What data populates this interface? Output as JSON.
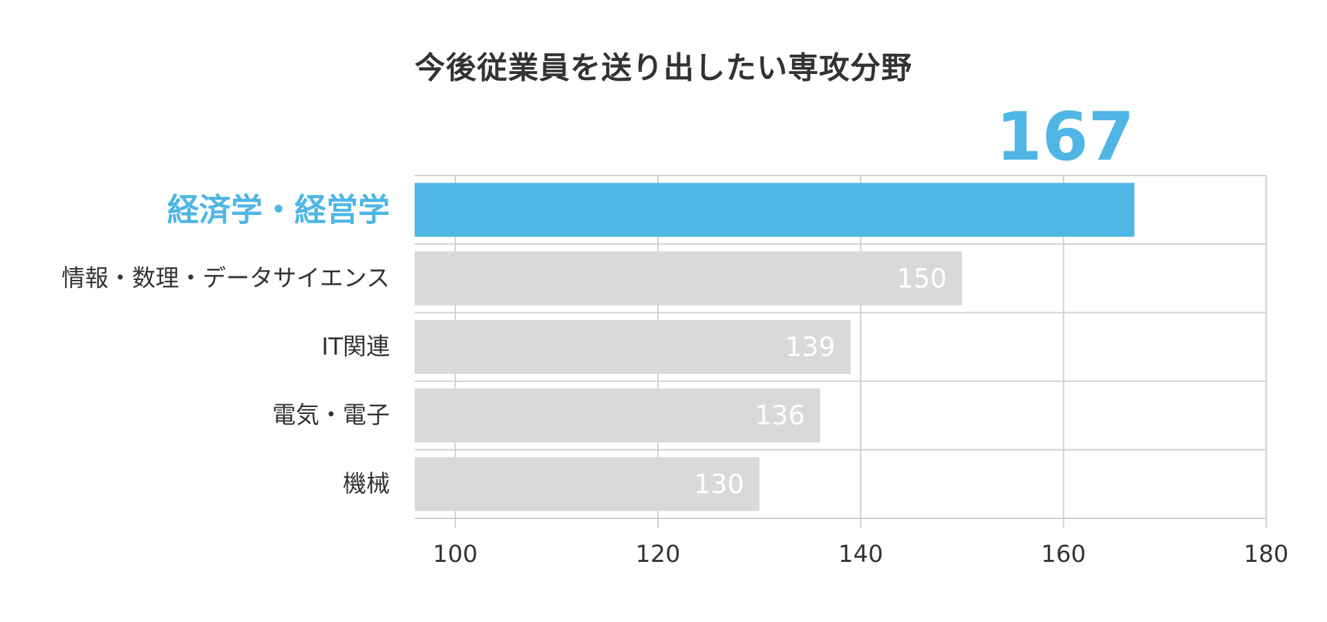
{
  "chart_data": {
    "type": "bar",
    "orientation": "horizontal",
    "title": "今後従業員を送り出したい専攻分野",
    "categories": [
      "経済学・経営学",
      "情報・数理・データサイエンス",
      "IT関連",
      "電気・電子",
      "機械"
    ],
    "values": [
      167,
      150,
      139,
      136,
      130
    ],
    "data_labels": [
      "167",
      "150",
      "139",
      "136",
      "130"
    ],
    "highlight_index": 0,
    "xlim": [
      96,
      180
    ],
    "xticks": [
      100,
      120,
      140,
      160,
      180
    ],
    "xtick_labels": [
      "100",
      "120",
      "140",
      "160",
      "180"
    ],
    "grid": true,
    "xlabel": "",
    "ylabel": "",
    "colors": {
      "highlight": "#4fb6e6",
      "bar": "#d9d9d9",
      "grid": "#d0d0d0",
      "label_on_bar": "#ffffff",
      "text": "#333333"
    }
  }
}
